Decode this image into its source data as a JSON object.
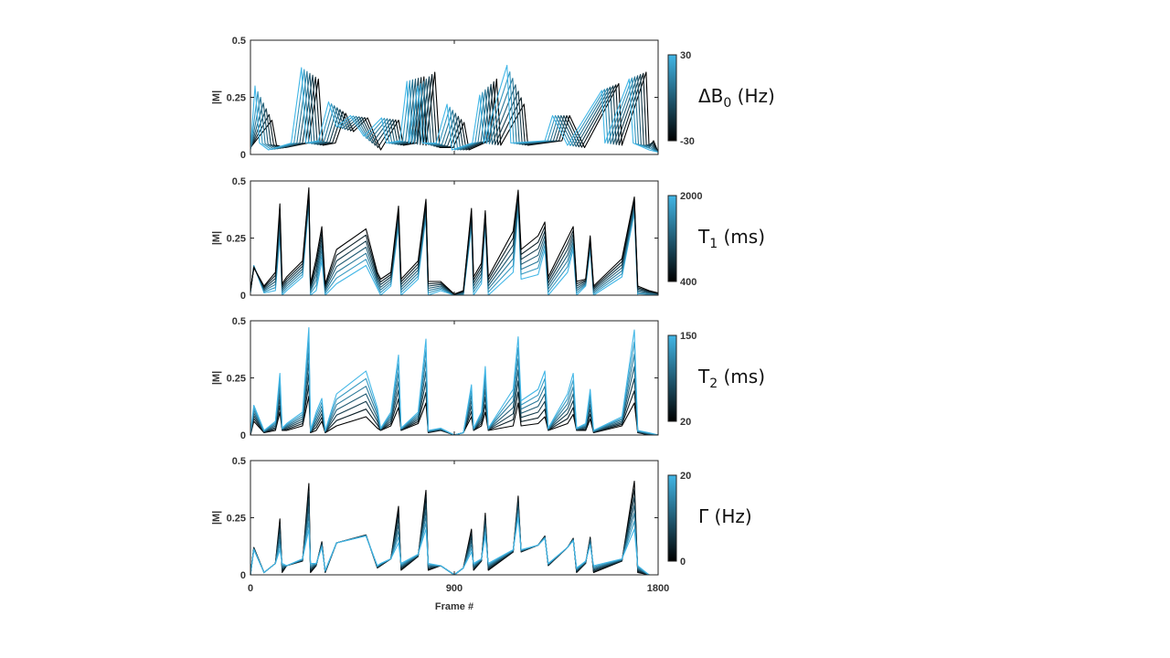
{
  "chart_data": [
    {
      "type": "line",
      "ylabel": "|M|",
      "ylim": [
        0,
        0.5
      ],
      "yticks": [
        "0",
        "0.25",
        "0.5"
      ],
      "xlim": [
        0,
        1800
      ],
      "xticks": [],
      "grid": false,
      "colorbar": {
        "label_main": "ΔB",
        "label_sub": "0",
        "label_unit": " (Hz)",
        "min_label": "-30",
        "max_label": "30",
        "min": -30,
        "max": 30,
        "min_color": "#000000",
        "max_color": "#41b6e6"
      },
      "series_min": [
        [
          0,
          0.03
        ],
        [
          95,
          0.15
        ],
        [
          115,
          0.04
        ],
        [
          155,
          0.03
        ],
        [
          255,
          0.05
        ],
        [
          300,
          0.33
        ],
        [
          320,
          0.04
        ],
        [
          375,
          0.05
        ],
        [
          420,
          0.18
        ],
        [
          455,
          0.1
        ],
        [
          517,
          0.16
        ],
        [
          575,
          0.02
        ],
        [
          654,
          0.15
        ],
        [
          675,
          0.04
        ],
        [
          735,
          0.05
        ],
        [
          766,
          0.34
        ],
        [
          775,
          0.04
        ],
        [
          814,
          0.36
        ],
        [
          835,
          0.03
        ],
        [
          895,
          0.03
        ],
        [
          943,
          0.14
        ],
        [
          965,
          0.02
        ],
        [
          1055,
          0.06
        ],
        [
          1087,
          0.33
        ],
        [
          1105,
          0.04
        ],
        [
          1208,
          0.22
        ],
        [
          1225,
          0.04
        ],
        [
          1375,
          0.06
        ],
        [
          1409,
          0.17
        ],
        [
          1475,
          0.03
        ],
        [
          1626,
          0.31
        ],
        [
          1640,
          0.04
        ],
        [
          1747,
          0.36
        ],
        [
          1760,
          0.03
        ],
        [
          1780,
          0.06
        ],
        [
          1800,
          0.01
        ]
      ],
      "series_max": [
        [
          0,
          0.02
        ],
        [
          20,
          0.3
        ],
        [
          40,
          0.05
        ],
        [
          80,
          0.02
        ],
        [
          180,
          0.05
        ],
        [
          225,
          0.38
        ],
        [
          245,
          0.05
        ],
        [
          300,
          0.06
        ],
        [
          345,
          0.23
        ],
        [
          380,
          0.12
        ],
        [
          442,
          0.17
        ],
        [
          500,
          0.08
        ],
        [
          579,
          0.16
        ],
        [
          600,
          0.05
        ],
        [
          660,
          0.06
        ],
        [
          691,
          0.32
        ],
        [
          700,
          0.05
        ],
        [
          739,
          0.3
        ],
        [
          760,
          0.05
        ],
        [
          820,
          0.05
        ],
        [
          868,
          0.22
        ],
        [
          890,
          0.02
        ],
        [
          980,
          0.05
        ],
        [
          1012,
          0.26
        ],
        [
          1030,
          0.05
        ],
        [
          1133,
          0.39
        ],
        [
          1150,
          0.05
        ],
        [
          1300,
          0.06
        ],
        [
          1334,
          0.17
        ],
        [
          1400,
          0.04
        ],
        [
          1551,
          0.28
        ],
        [
          1565,
          0.05
        ],
        [
          1672,
          0.33
        ],
        [
          1690,
          0.05
        ],
        [
          1760,
          0.02
        ],
        [
          1800,
          0.01
        ]
      ]
    },
    {
      "type": "line",
      "ylabel": "|M|",
      "ylim": [
        0,
        0.5
      ],
      "yticks": [
        "0",
        "0.25",
        "0.5"
      ],
      "xlim": [
        0,
        1800
      ],
      "xticks": [],
      "grid": false,
      "colorbar": {
        "label_main": "T",
        "label_sub": "1",
        "label_unit": " (ms)",
        "min_label": "400",
        "max_label": "2000",
        "min": 400,
        "max": 2000,
        "min_color": "#000000",
        "max_color": "#41b6e6"
      },
      "x": [
        0,
        15,
        60,
        110,
        130,
        140,
        160,
        230,
        258,
        265,
        290,
        315,
        330,
        380,
        510,
        560,
        575,
        620,
        654,
        665,
        740,
        775,
        785,
        840,
        900,
        940,
        976,
        985,
        1020,
        1037,
        1050,
        1160,
        1182,
        1195,
        1270,
        1300,
        1315,
        1400,
        1425,
        1440,
        1480,
        1500,
        1515,
        1640,
        1695,
        1710,
        1760,
        1800
      ],
      "y_min": [
        0.02,
        0.12,
        0.04,
        0.1,
        0.4,
        0.05,
        0.08,
        0.15,
        0.47,
        0.05,
        0.16,
        0.3,
        0.05,
        0.2,
        0.29,
        0.1,
        0.07,
        0.1,
        0.39,
        0.07,
        0.15,
        0.42,
        0.06,
        0.06,
        0.005,
        0.02,
        0.38,
        0.08,
        0.14,
        0.37,
        0.08,
        0.28,
        0.46,
        0.2,
        0.26,
        0.32,
        0.08,
        0.25,
        0.3,
        0.06,
        0.07,
        0.26,
        0.04,
        0.16,
        0.43,
        0.04,
        0.02,
        0.01
      ],
      "y_max": [
        0.01,
        0.13,
        0.01,
        0.02,
        0.26,
        0.0,
        0.02,
        0.08,
        0.4,
        0.0,
        0.02,
        0.15,
        0.0,
        0.05,
        0.13,
        0.03,
        0.0,
        0.04,
        0.3,
        0.0,
        0.07,
        0.34,
        0.0,
        0.02,
        0.0,
        0.0,
        0.3,
        0.0,
        0.05,
        0.3,
        0.0,
        0.1,
        0.38,
        0.07,
        0.09,
        0.2,
        0.0,
        0.1,
        0.2,
        0.0,
        0.04,
        0.2,
        0.0,
        0.08,
        0.36,
        0.0,
        0.0,
        0.0
      ]
    },
    {
      "type": "line",
      "ylabel": "|M|",
      "ylim": [
        0,
        0.5
      ],
      "yticks": [
        "0",
        "0.25",
        "0.5"
      ],
      "xlim": [
        0,
        1800
      ],
      "xticks": [],
      "grid": false,
      "colorbar": {
        "label_main": "T",
        "label_sub": "2",
        "label_unit": " (ms)",
        "min_label": "20",
        "max_label": "150",
        "min": 20,
        "max": 150,
        "min_color": "#000000",
        "max_color": "#41b6e6"
      },
      "x": [
        0,
        15,
        60,
        110,
        130,
        140,
        160,
        230,
        258,
        265,
        290,
        315,
        330,
        380,
        510,
        560,
        575,
        620,
        654,
        665,
        740,
        775,
        785,
        840,
        900,
        940,
        976,
        985,
        1020,
        1037,
        1050,
        1160,
        1182,
        1195,
        1270,
        1300,
        1315,
        1400,
        1425,
        1440,
        1480,
        1500,
        1515,
        1640,
        1695,
        1710,
        1760,
        1800
      ],
      "y_min": [
        0.0,
        0.06,
        0.01,
        0.02,
        0.1,
        0.02,
        0.02,
        0.04,
        0.17,
        0.01,
        0.02,
        0.06,
        0.01,
        0.04,
        0.08,
        0.03,
        0.02,
        0.04,
        0.12,
        0.02,
        0.05,
        0.14,
        0.01,
        0.02,
        0.0,
        0.01,
        0.08,
        0.02,
        0.04,
        0.1,
        0.02,
        0.04,
        0.14,
        0.04,
        0.05,
        0.08,
        0.02,
        0.05,
        0.09,
        0.02,
        0.02,
        0.07,
        0.01,
        0.04,
        0.14,
        0.01,
        0.0,
        0.0
      ],
      "y_max": [
        0.01,
        0.13,
        0.02,
        0.06,
        0.27,
        0.03,
        0.05,
        0.1,
        0.47,
        0.02,
        0.1,
        0.16,
        0.02,
        0.18,
        0.28,
        0.12,
        0.03,
        0.1,
        0.35,
        0.03,
        0.1,
        0.42,
        0.02,
        0.03,
        0.0,
        0.01,
        0.22,
        0.03,
        0.1,
        0.3,
        0.03,
        0.2,
        0.43,
        0.15,
        0.2,
        0.28,
        0.03,
        0.18,
        0.27,
        0.03,
        0.05,
        0.2,
        0.02,
        0.08,
        0.46,
        0.02,
        0.01,
        0.0
      ]
    },
    {
      "type": "line",
      "ylabel": "|M|",
      "xlabel": "Frame #",
      "ylim": [
        0,
        0.5
      ],
      "yticks": [
        "0",
        "0.25",
        "0.5"
      ],
      "xlim": [
        0,
        1800
      ],
      "xticks": [
        "0",
        "900",
        "1800"
      ],
      "grid": false,
      "colorbar": {
        "label_main": "Γ",
        "label_sub": "",
        "label_unit": " (Hz)",
        "min_label": "0",
        "max_label": "20",
        "min": 0,
        "max": 20,
        "min_color": "#000000",
        "max_color": "#41b6e6"
      },
      "x": [
        0,
        15,
        60,
        110,
        130,
        140,
        160,
        230,
        258,
        265,
        290,
        315,
        330,
        380,
        510,
        560,
        575,
        620,
        654,
        665,
        740,
        775,
        785,
        840,
        900,
        940,
        976,
        985,
        1020,
        1037,
        1050,
        1160,
        1182,
        1195,
        1270,
        1300,
        1315,
        1400,
        1425,
        1440,
        1480,
        1500,
        1515,
        1640,
        1695,
        1710,
        1760,
        1800
      ],
      "y_min": [
        0.0,
        0.12,
        0.01,
        0.05,
        0.245,
        0.01,
        0.04,
        0.06,
        0.4,
        0.01,
        0.04,
        0.145,
        0.01,
        0.14,
        0.175,
        0.03,
        0.04,
        0.07,
        0.3,
        0.02,
        0.08,
        0.37,
        0.02,
        0.04,
        0.0,
        0.03,
        0.2,
        0.02,
        0.06,
        0.27,
        0.02,
        0.1,
        0.345,
        0.1,
        0.13,
        0.17,
        0.04,
        0.12,
        0.16,
        0.01,
        0.05,
        0.165,
        0.01,
        0.06,
        0.41,
        0.01,
        0.0,
        0.0
      ],
      "y_max": [
        0.0,
        0.11,
        0.01,
        0.05,
        0.11,
        0.05,
        0.04,
        0.07,
        0.2,
        0.05,
        0.05,
        0.12,
        0.02,
        0.14,
        0.17,
        0.04,
        0.05,
        0.07,
        0.14,
        0.05,
        0.09,
        0.2,
        0.05,
        0.04,
        0.0,
        0.03,
        0.1,
        0.05,
        0.07,
        0.17,
        0.05,
        0.11,
        0.25,
        0.11,
        0.13,
        0.16,
        0.05,
        0.12,
        0.15,
        0.03,
        0.06,
        0.13,
        0.04,
        0.07,
        0.2,
        0.04,
        0.0,
        0.0
      ]
    }
  ]
}
